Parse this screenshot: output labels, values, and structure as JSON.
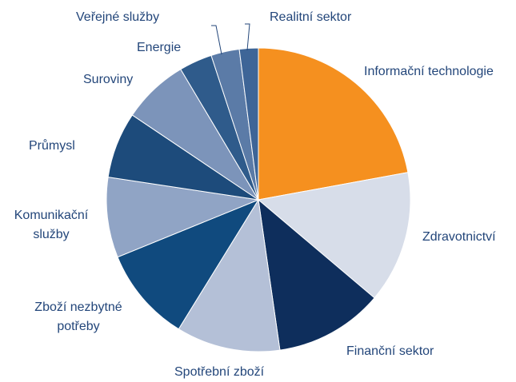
{
  "chart_data": {
    "type": "pie",
    "categories": [
      "Informační technologie",
      "Zdravotnictví",
      "Finanční sektor",
      "Spotřební zboží",
      "Zboží nezbytné potřeby",
      "Komunikační služby",
      "Průmysl",
      "Suroviny",
      "Energie",
      "Veřejné služby",
      "Realitní sektor"
    ],
    "values": [
      22,
      14,
      11.5,
      11,
      10,
      8.5,
      7,
      7,
      3.5,
      3,
      2
    ],
    "colors": [
      "#f5901f",
      "#d7dde9",
      "#0e2e5c",
      "#b4c0d7",
      "#104a7e",
      "#90a4c5",
      "#1d4b7b",
      "#7c94ba",
      "#2f5b8b",
      "#5b7ba7",
      "#3e6597"
    ]
  }
}
